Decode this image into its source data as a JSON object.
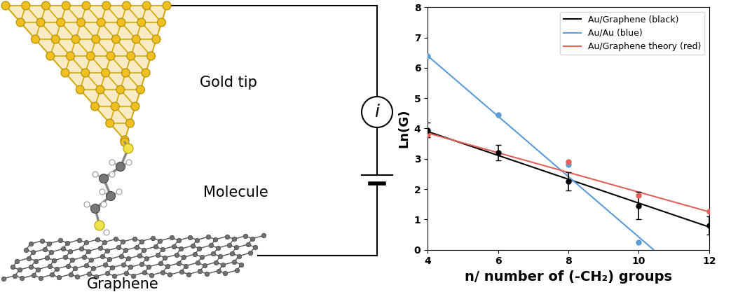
{
  "diagram": {
    "labels": [
      "Gold tip",
      "Molecule",
      "Graphene"
    ],
    "meter": "i"
  },
  "chart_data": {
    "type": "scatter",
    "xlabel": "n/ number of (-CH₂) groups",
    "ylabel": "Ln(G)",
    "xlim": [
      4,
      12
    ],
    "xticks": [
      4,
      6,
      8,
      10,
      12
    ],
    "ylim": [
      0,
      8
    ],
    "yticks": [
      0,
      1,
      2,
      3,
      4,
      5,
      6,
      7,
      8
    ],
    "grid": false,
    "legend": "upper right",
    "series": [
      {
        "name": "Au/Graphene (black)",
        "color": "#000000",
        "marker": "circle",
        "line_style": "solid",
        "x": [
          4,
          6,
          8,
          10,
          12
        ],
        "values": [
          3.95,
          3.2,
          2.25,
          1.45,
          0.8
        ],
        "errors": [
          0.25,
          0.25,
          0.3,
          0.45,
          0.3
        ],
        "fit": {
          "x": [
            4,
            12
          ],
          "values": [
            3.9,
            0.75
          ]
        }
      },
      {
        "name": "Au/Au (blue)",
        "color": "#5b9bd5",
        "marker": "circle",
        "line_style": "solid",
        "x": [
          4,
          6,
          8,
          10
        ],
        "values": [
          6.4,
          4.45,
          2.8,
          0.25
        ],
        "fit": {
          "x": [
            4,
            10.42
          ],
          "values": [
            6.4,
            0
          ]
        }
      },
      {
        "name": "Au/Graphene theory (red)",
        "color": "#e0605a",
        "marker": "circle",
        "line_style": "solid",
        "x": [
          4,
          8,
          10,
          12
        ],
        "values": [
          3.8,
          2.9,
          1.8,
          1.25
        ],
        "fit": {
          "x": [
            4,
            12
          ],
          "values": [
            3.85,
            1.25
          ]
        }
      }
    ]
  }
}
